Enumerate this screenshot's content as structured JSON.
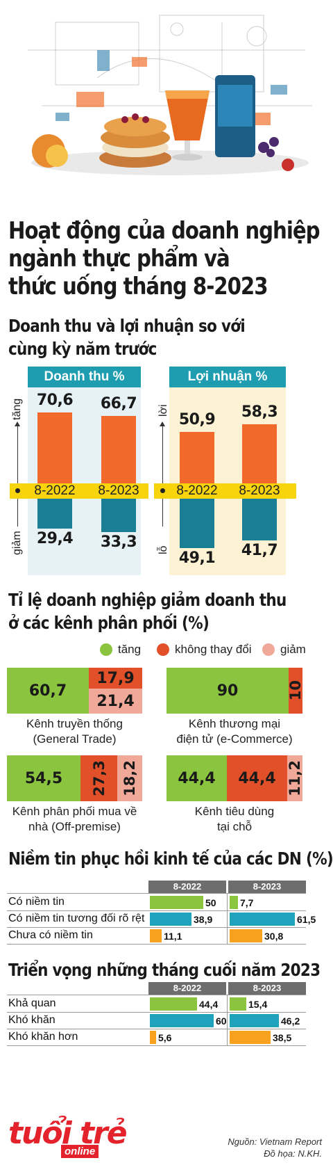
{
  "title": {
    "line1": "Hoạt động của doanh nghiệp",
    "line2": "ngành thực phẩm và",
    "line3": "thức uống tháng 8-2023"
  },
  "section1": {
    "line1": "Doanh thu và lợi nhuận so với",
    "line2": "cùng kỳ năm trước"
  },
  "chart_revenue": {
    "header": "Doanh thu %",
    "up_label": "tăng",
    "down_label": "giảm"
  },
  "chart_profit": {
    "header": "Lợi nhuận %",
    "up_label": "lời",
    "down_label": "lỗ"
  },
  "section2": {
    "line1": "Tỉ lệ doanh nghiệp giảm doanh thu",
    "line2": "ở các kênh phân phối (%)"
  },
  "legend": {
    "increase": "tăng",
    "unchanged": "không thay đổi",
    "decrease": "giảm"
  },
  "section3": {
    "title": "Niềm tin phục hồi kinh tế của các DN (%)"
  },
  "section4": {
    "title": "Triển vọng những tháng cuối năm 2023"
  },
  "source": "Nguồn: Vietnam Report",
  "credit": "Đồ họa: N.KH.",
  "logo": {
    "main": "tuổi trẻ",
    "sub": "online"
  },
  "colors": {
    "orange": "#f26a2b",
    "teal": "#1a7f95",
    "yellow": "#f7d40c",
    "green": "#8bc53f",
    "red": "#e2502a",
    "pink": "#f0a998",
    "table_blue": "#1fa3bd",
    "table_orange": "#f8a21f"
  },
  "chart_data": [
    {
      "type": "bar",
      "title": "Doanh thu %",
      "categories": [
        "8-2022",
        "8-2023"
      ],
      "series": [
        {
          "name": "tăng",
          "values": [
            70.6,
            66.7
          ],
          "labels": [
            "70,6",
            "66,7"
          ]
        },
        {
          "name": "giảm",
          "values": [
            29.4,
            33.3
          ],
          "labels": [
            "29,4",
            "33,3"
          ]
        }
      ]
    },
    {
      "type": "bar",
      "title": "Lợi nhuận %",
      "categories": [
        "8-2022",
        "8-2023"
      ],
      "series": [
        {
          "name": "lời",
          "values": [
            50.9,
            58.3
          ],
          "labels": [
            "50,9",
            "58,3"
          ]
        },
        {
          "name": "lỗ",
          "values": [
            49.1,
            41.7
          ],
          "labels": [
            "49,1",
            "41,7"
          ]
        }
      ]
    },
    {
      "type": "bar",
      "title": "Tỉ lệ doanh nghiệp giảm doanh thu ở các kênh phân phối (%)",
      "channels": [
        {
          "name": "Kênh truyền thống (General Trade)",
          "tang": 60.7,
          "khong_thay_doi": 17.9,
          "giam": 21.4,
          "labels": [
            "60,7",
            "17,9",
            "21,4"
          ]
        },
        {
          "name": "Kênh thương mại điện tử (e-Commerce)",
          "tang": 90,
          "khong_thay_doi": 10,
          "giam": 0,
          "labels": [
            "90",
            "10",
            ""
          ]
        },
        {
          "name": "Kênh phân phối mua về nhà (Off-premise)",
          "tang": 54.5,
          "khong_thay_doi": 27.3,
          "giam": 18.2,
          "labels": [
            "54,5",
            "27,3",
            "18,2"
          ]
        },
        {
          "name": "Kênh tiêu dùng tại chỗ",
          "tang": 44.4,
          "khong_thay_doi": 44.4,
          "giam": 11.2,
          "labels": [
            "44,4",
            "44,4",
            "11,2"
          ]
        }
      ],
      "captions": [
        [
          "Kênh truyền thống",
          "(General Trade)"
        ],
        [
          "Kênh thương mại",
          "điện tử (e-Commerce)"
        ],
        [
          "Kênh phân phối mua về",
          "nhà (Off-premise)"
        ],
        [
          "Kênh tiêu dùng",
          "tại chỗ"
        ]
      ]
    },
    {
      "type": "bar",
      "title": "Niềm tin phục hồi kinh tế của các DN (%)",
      "columns": [
        "8-2022",
        "8-2023"
      ],
      "rows": [
        {
          "label": "Có niềm tin",
          "values": [
            50,
            7.7
          ],
          "labels": [
            "50",
            "7,7"
          ],
          "color": "#8bc53f"
        },
        {
          "label": "Có niềm tin tương đối rõ rệt",
          "values": [
            38.9,
            61.5
          ],
          "labels": [
            "38,9",
            "61,5"
          ],
          "color": "#1fa3bd"
        },
        {
          "label": "Chưa có niềm tin",
          "values": [
            11.1,
            30.8
          ],
          "labels": [
            "11,1",
            "30,8"
          ],
          "color": "#f8a21f"
        }
      ]
    },
    {
      "type": "bar",
      "title": "Triển vọng những tháng cuối năm 2023",
      "columns": [
        "8-2022",
        "8-2023"
      ],
      "rows": [
        {
          "label": "Khả quan",
          "values": [
            44.4,
            15.4
          ],
          "labels": [
            "44,4",
            "15,4"
          ],
          "color": "#8bc53f"
        },
        {
          "label": "Khó khăn",
          "values": [
            60,
            46.2
          ],
          "labels": [
            "60",
            "46,2"
          ],
          "color": "#1fa3bd"
        },
        {
          "label": "Khó khăn hơn",
          "values": [
            5.6,
            38.5
          ],
          "labels": [
            "5,6",
            "38,5"
          ],
          "color": "#f8a21f"
        }
      ]
    }
  ]
}
